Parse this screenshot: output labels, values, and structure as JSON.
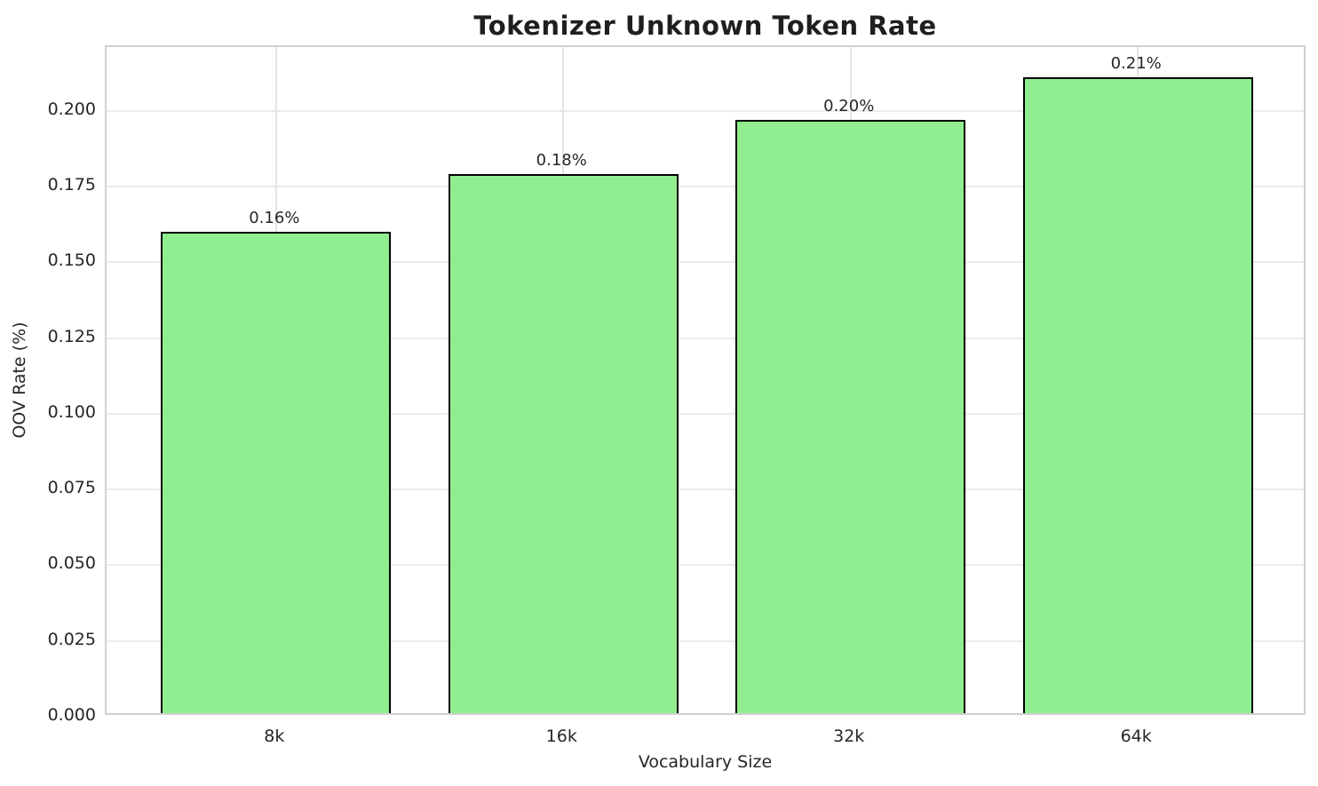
{
  "chart_data": {
    "type": "bar",
    "title": "Tokenizer Unknown Token Rate",
    "xlabel": "Vocabulary Size",
    "ylabel": "OOV Rate (%)",
    "categories": [
      "8k",
      "16k",
      "32k",
      "64k"
    ],
    "values": [
      0.159,
      0.178,
      0.196,
      0.21
    ],
    "bar_labels": [
      "0.16%",
      "0.18%",
      "0.20%",
      "0.21%"
    ],
    "ytick_labels": [
      "0.000",
      "0.025",
      "0.050",
      "0.075",
      "0.100",
      "0.125",
      "0.150",
      "0.175",
      "0.200"
    ],
    "yticks": [
      0.0,
      0.025,
      0.05,
      0.075,
      0.1,
      0.125,
      0.15,
      0.175,
      0.2
    ],
    "ylim": [
      0,
      0.2211
    ],
    "grid": true,
    "legend_position": "none",
    "bar_color": "#90EE90",
    "bar_edge_color": "#000000",
    "text_color": "#262626",
    "grid_color": "#ebebeb",
    "spine_color": "#d0d0d0",
    "background_color": "#ffffff"
  }
}
